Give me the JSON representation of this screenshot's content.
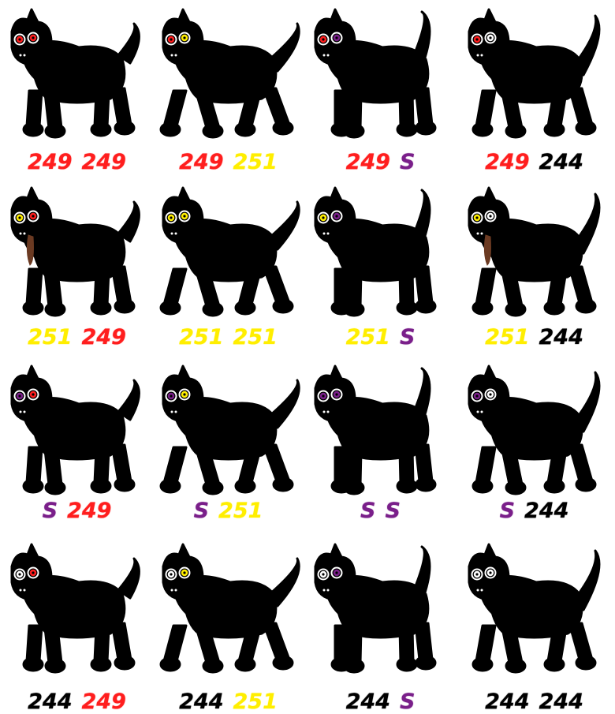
{
  "colors": {
    "fur": "#000000",
    "red": "#ff1e1e",
    "yellow": "#ffee00",
    "purple": "#7a1f8a",
    "black": "#000000",
    "tongue": "#6b3a22",
    "eye_ring": "#ffffff"
  },
  "gene_colors": {
    "249": "red",
    "251": "yellow",
    "S": "purple",
    "244": "black"
  },
  "grid": [
    {
      "row": 1,
      "dogs": [
        {
          "eyes": [
            "red",
            "red"
          ],
          "labels": [
            "249",
            "249"
          ]
        },
        {
          "eyes": [
            "red",
            "yellow"
          ],
          "labels": [
            "249",
            "251"
          ]
        },
        {
          "eyes": [
            "red",
            "purple"
          ],
          "labels": [
            "249",
            "S"
          ]
        },
        {
          "eyes": [
            "red",
            "white"
          ],
          "labels": [
            "249",
            "244"
          ]
        }
      ]
    },
    {
      "row": 2,
      "dogs": [
        {
          "eyes": [
            "yellow",
            "red"
          ],
          "labels": [
            "251",
            "249"
          ],
          "tongue": true
        },
        {
          "eyes": [
            "yellow",
            "yellow"
          ],
          "labels": [
            "251",
            "251"
          ]
        },
        {
          "eyes": [
            "yellow",
            "purple"
          ],
          "labels": [
            "251",
            "S"
          ]
        },
        {
          "eyes": [
            "yellow",
            "white"
          ],
          "labels": [
            "251",
            "244"
          ],
          "tongue": true
        }
      ]
    },
    {
      "row": 3,
      "dogs": [
        {
          "eyes": [
            "purple",
            "red"
          ],
          "labels": [
            "S",
            "249"
          ]
        },
        {
          "eyes": [
            "purple",
            "yellow"
          ],
          "labels": [
            "S",
            "251"
          ]
        },
        {
          "eyes": [
            "purple",
            "purple"
          ],
          "labels": [
            "S",
            "S"
          ]
        },
        {
          "eyes": [
            "purple",
            "white"
          ],
          "labels": [
            "S",
            "244"
          ]
        }
      ]
    },
    {
      "row": 4,
      "dogs": [
        {
          "eyes": [
            "white",
            "red"
          ],
          "labels": [
            "244",
            "249"
          ]
        },
        {
          "eyes": [
            "white",
            "yellow"
          ],
          "labels": [
            "244",
            "251"
          ]
        },
        {
          "eyes": [
            "white",
            "purple"
          ],
          "labels": [
            "244",
            "S"
          ]
        },
        {
          "eyes": [
            "white",
            "white"
          ],
          "labels": [
            "244",
            "244"
          ]
        }
      ]
    }
  ]
}
